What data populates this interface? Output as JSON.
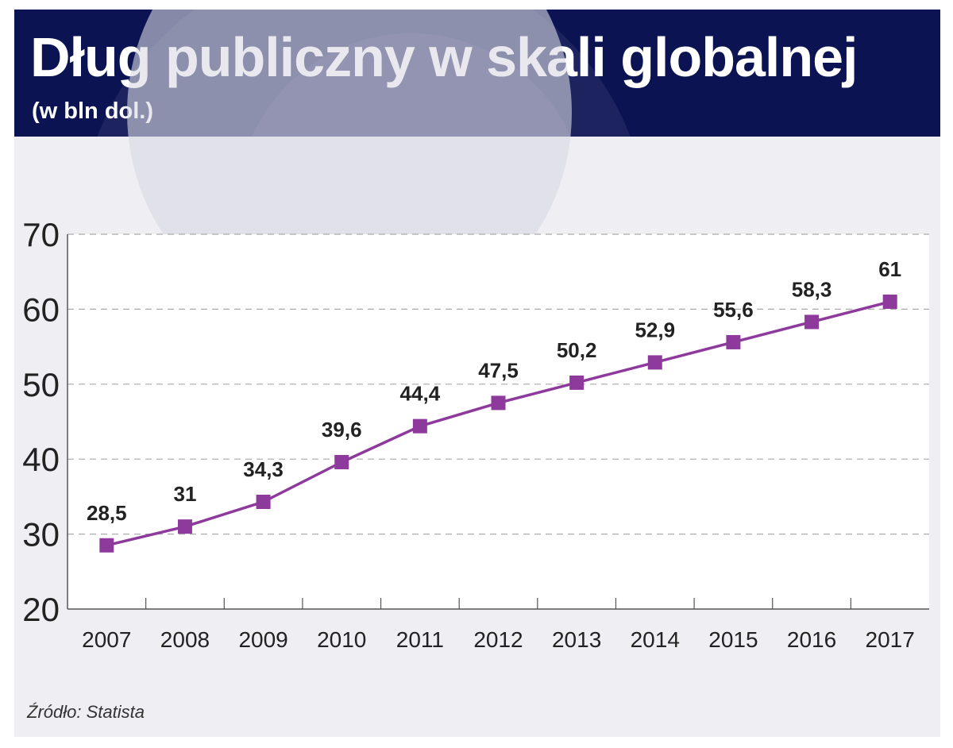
{
  "header": {
    "title": "Dług publiczny w skali globalnej",
    "subtitle": "(w bln dol.)"
  },
  "source": "Źródło: Statista",
  "colors": {
    "header_bg": "#0b1352",
    "panel_bg": "#eeeef3",
    "plot_bg": "#ffffff",
    "series": "#8e3a9d",
    "grid": "#aaaaaa",
    "text": "#222222"
  },
  "chart_data": {
    "type": "line",
    "title": "Dług publiczny w skali globalnej",
    "subtitle": "(w bln dol.)",
    "categories": [
      "2007",
      "2008",
      "2009",
      "2010",
      "2011",
      "2012",
      "2013",
      "2014",
      "2015",
      "2016",
      "2017"
    ],
    "series": [
      {
        "values": [
          28.5,
          31,
          34.3,
          39.6,
          44.4,
          47.5,
          50.2,
          52.9,
          55.6,
          58.3,
          61
        ],
        "labels": [
          "28,5",
          "31",
          "34,3",
          "39,6",
          "44,4",
          "47,5",
          "50,2",
          "52,9",
          "55,6",
          "58,3",
          "61"
        ]
      }
    ],
    "ylim": [
      20,
      70
    ],
    "yticks": [
      20,
      30,
      40,
      50,
      60,
      70
    ],
    "grid": true,
    "grid_style": "dashed",
    "marker": "square",
    "xlabel": "",
    "ylabel": ""
  }
}
